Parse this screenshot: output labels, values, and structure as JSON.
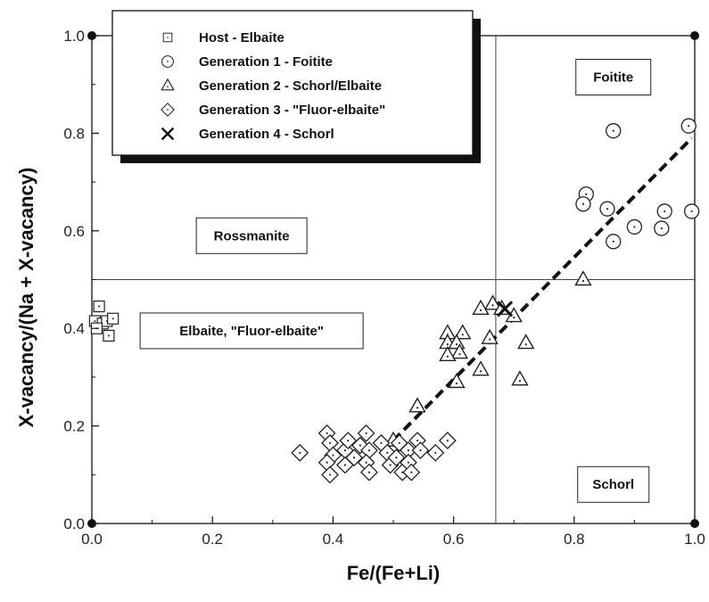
{
  "chart_data": {
    "type": "scatter",
    "title": "",
    "xlabel": "Fe/(Fe+Li)",
    "ylabel": "X-vacancy/(Na + X-vacancy)",
    "xlim": [
      0.0,
      1.0
    ],
    "ylim": [
      0.0,
      1.0
    ],
    "xticks": [
      "0.0",
      "0.2",
      "0.4",
      "0.6",
      "0.8",
      "1.0"
    ],
    "yticks": [
      "0.0",
      "0.2",
      "0.4",
      "0.6",
      "0.8",
      "1.0"
    ],
    "grid": false,
    "legend_position": "top-left",
    "field_boundaries": {
      "x": 0.67,
      "y": 0.5
    },
    "fields": [
      {
        "label": "Foitite",
        "x": 0.865,
        "y": 0.915
      },
      {
        "label": "Rossmanite",
        "x": 0.265,
        "y": 0.59
      },
      {
        "label": "Elbaite, \"Fluor-elbaite\"",
        "x": 0.265,
        "y": 0.395
      },
      {
        "label": "Schorl",
        "x": 0.865,
        "y": 0.08
      }
    ],
    "trend_line": {
      "style": "dashed",
      "points": [
        [
          0.5,
          0.17
        ],
        [
          0.995,
          0.79
        ]
      ]
    },
    "series": [
      {
        "name": "Host - Elbaite",
        "marker": "square",
        "points": [
          [
            0.012,
            0.445
          ],
          [
            0.005,
            0.415
          ],
          [
            0.018,
            0.41
          ],
          [
            0.025,
            0.415
          ],
          [
            0.035,
            0.42
          ],
          [
            0.028,
            0.385
          ],
          [
            0.008,
            0.4
          ]
        ]
      },
      {
        "name": "Generation 1 - Foitite",
        "marker": "circle",
        "points": [
          [
            0.99,
            0.815
          ],
          [
            0.865,
            0.805
          ],
          [
            0.82,
            0.675
          ],
          [
            0.815,
            0.655
          ],
          [
            0.855,
            0.645
          ],
          [
            0.95,
            0.64
          ],
          [
            0.995,
            0.64
          ],
          [
            0.9,
            0.608
          ],
          [
            0.945,
            0.605
          ],
          [
            0.865,
            0.578
          ]
        ]
      },
      {
        "name": "Generation 2 - Schorl/Elbaite",
        "marker": "triangle",
        "points": [
          [
            0.815,
            0.5
          ],
          [
            0.665,
            0.45
          ],
          [
            0.645,
            0.44
          ],
          [
            0.68,
            0.44
          ],
          [
            0.7,
            0.425
          ],
          [
            0.59,
            0.39
          ],
          [
            0.615,
            0.39
          ],
          [
            0.66,
            0.38
          ],
          [
            0.59,
            0.37
          ],
          [
            0.605,
            0.37
          ],
          [
            0.72,
            0.37
          ],
          [
            0.61,
            0.35
          ],
          [
            0.59,
            0.345
          ],
          [
            0.645,
            0.315
          ],
          [
            0.605,
            0.29
          ],
          [
            0.71,
            0.295
          ],
          [
            0.54,
            0.24
          ],
          [
            0.5,
            0.17
          ]
        ]
      },
      {
        "name": "Generation 3 - \"Fluor-elbaite\"",
        "marker": "diamond",
        "points": [
          [
            0.345,
            0.145
          ],
          [
            0.39,
            0.185
          ],
          [
            0.395,
            0.165
          ],
          [
            0.4,
            0.14
          ],
          [
            0.39,
            0.125
          ],
          [
            0.395,
            0.1
          ],
          [
            0.42,
            0.15
          ],
          [
            0.425,
            0.17
          ],
          [
            0.42,
            0.12
          ],
          [
            0.435,
            0.135
          ],
          [
            0.445,
            0.16
          ],
          [
            0.455,
            0.185
          ],
          [
            0.46,
            0.15
          ],
          [
            0.455,
            0.125
          ],
          [
            0.46,
            0.105
          ],
          [
            0.48,
            0.165
          ],
          [
            0.49,
            0.145
          ],
          [
            0.495,
            0.12
          ],
          [
            0.505,
            0.135
          ],
          [
            0.51,
            0.165
          ],
          [
            0.515,
            0.105
          ],
          [
            0.525,
            0.15
          ],
          [
            0.525,
            0.125
          ],
          [
            0.53,
            0.105
          ],
          [
            0.54,
            0.17
          ],
          [
            0.545,
            0.15
          ],
          [
            0.57,
            0.145
          ],
          [
            0.59,
            0.17
          ]
        ]
      },
      {
        "name": "Generation 4 - Schorl",
        "marker": "x",
        "points": [
          [
            0.685,
            0.44
          ]
        ]
      }
    ]
  }
}
